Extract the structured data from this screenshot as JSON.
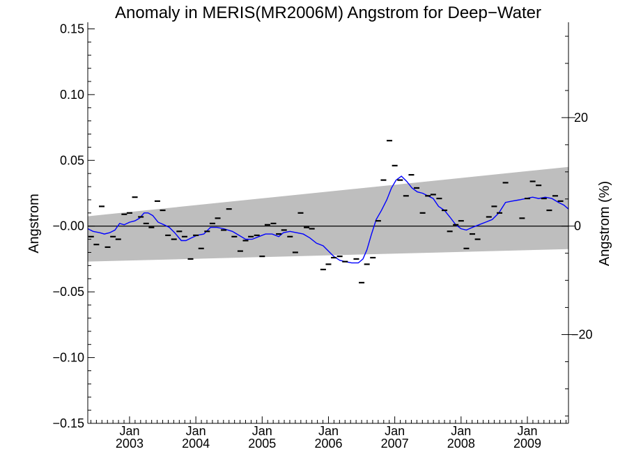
{
  "chart_data": {
    "type": "line",
    "title": "Anomaly in MERIS(MR2006M) Angstrom for Deep−Water",
    "ylabel": "Angstrom",
    "ylabel_right": "Angstrom (%)",
    "ylim": [
      -0.15,
      0.155
    ],
    "y_ticks": [
      {
        "value": 0.15,
        "label": "0.15"
      },
      {
        "value": 0.1,
        "label": "0.10"
      },
      {
        "value": 0.05,
        "label": "0.05"
      },
      {
        "value": 0.0,
        "label": "−0.00"
      },
      {
        "value": -0.05,
        "label": "−0.05"
      },
      {
        "value": -0.1,
        "label": "−0.10"
      },
      {
        "value": -0.15,
        "label": "−0.15"
      }
    ],
    "y_right_ticks": [
      {
        "value": 0.0825,
        "label": "20"
      },
      {
        "value": 0.0,
        "label": "0"
      },
      {
        "value": -0.0825,
        "label": "−20"
      }
    ],
    "xlim": [
      2002.37,
      2009.62
    ],
    "x_ticks": [
      {
        "value": 2003.0,
        "month": "Jan",
        "year": "2003"
      },
      {
        "value": 2004.0,
        "month": "Jan",
        "year": "2004"
      },
      {
        "value": 2005.0,
        "month": "Jan",
        "year": "2005"
      },
      {
        "value": 2006.0,
        "month": "Jan",
        "year": "2006"
      },
      {
        "value": 2007.0,
        "month": "Jan",
        "year": "2007"
      },
      {
        "value": 2008.0,
        "month": "Jan",
        "year": "2008"
      },
      {
        "value": 2009.0,
        "month": "Jan",
        "year": "2009"
      }
    ],
    "uncertainty_band": {
      "x": [
        2002.37,
        2009.62
      ],
      "upper": [
        0.0075,
        0.045
      ],
      "lower": [
        -0.027,
        -0.0175
      ],
      "color": "#bebebe"
    },
    "zero_line": 0.0,
    "series": [
      {
        "kind": "markers",
        "color": "#000000",
        "points": [
          [
            2002.42,
            -0.008
          ],
          [
            2002.5,
            -0.014
          ],
          [
            2002.58,
            0.015
          ],
          [
            2002.67,
            -0.016
          ],
          [
            2002.75,
            -0.008
          ],
          [
            2002.83,
            -0.01
          ],
          [
            2002.92,
            0.009
          ],
          [
            2003.0,
            0.01
          ],
          [
            2003.08,
            0.022
          ],
          [
            2003.17,
            0.007
          ],
          [
            2003.25,
            0.002
          ],
          [
            2003.33,
            -0.001
          ],
          [
            2003.42,
            0.019
          ],
          [
            2003.5,
            0.012
          ],
          [
            2003.58,
            -0.007
          ],
          [
            2003.67,
            -0.01
          ],
          [
            2003.75,
            -0.004
          ],
          [
            2003.83,
            -0.008
          ],
          [
            2003.92,
            -0.025
          ],
          [
            2004.0,
            -0.007
          ],
          [
            2004.08,
            -0.017
          ],
          [
            2004.17,
            -0.004
          ],
          [
            2004.25,
            0.002
          ],
          [
            2004.33,
            0.006
          ],
          [
            2004.42,
            -0.003
          ],
          [
            2004.5,
            0.013
          ],
          [
            2004.58,
            -0.008
          ],
          [
            2004.67,
            -0.019
          ],
          [
            2004.75,
            -0.011
          ],
          [
            2004.83,
            -0.008
          ],
          [
            2004.92,
            -0.007
          ],
          [
            2005.0,
            -0.023
          ],
          [
            2005.08,
            0.001
          ],
          [
            2005.17,
            0.002
          ],
          [
            2005.25,
            -0.006
          ],
          [
            2005.33,
            -0.003
          ],
          [
            2005.42,
            -0.008
          ],
          [
            2005.5,
            -0.02
          ],
          [
            2005.58,
            0.01
          ],
          [
            2005.67,
            -0.001
          ],
          [
            2005.75,
            -0.002
          ],
          [
            2005.92,
            -0.033
          ],
          [
            2006.0,
            -0.029
          ],
          [
            2006.08,
            -0.024
          ],
          [
            2006.17,
            -0.023
          ],
          [
            2006.25,
            -0.027
          ],
          [
            2006.42,
            -0.025
          ],
          [
            2006.5,
            -0.043
          ],
          [
            2006.58,
            -0.029
          ],
          [
            2006.67,
            -0.024
          ],
          [
            2006.75,
            0.004
          ],
          [
            2006.83,
            0.035
          ],
          [
            2006.92,
            0.065
          ],
          [
            2007.0,
            0.046
          ],
          [
            2007.08,
            0.035
          ],
          [
            2007.17,
            0.023
          ],
          [
            2007.25,
            0.039
          ],
          [
            2007.33,
            0.029
          ],
          [
            2007.42,
            0.01
          ],
          [
            2007.5,
            0.023
          ],
          [
            2007.58,
            0.024
          ],
          [
            2007.67,
            0.021
          ],
          [
            2007.75,
            0.012
          ],
          [
            2007.83,
            -0.004
          ],
          [
            2007.92,
            0.001
          ],
          [
            2008.0,
            0.004
          ],
          [
            2008.08,
            -0.017
          ],
          [
            2008.17,
            -0.006
          ],
          [
            2008.25,
            -0.01
          ],
          [
            2008.42,
            0.007
          ],
          [
            2008.5,
            0.015
          ],
          [
            2008.58,
            0.01
          ],
          [
            2008.67,
            0.033
          ],
          [
            2008.92,
            0.006
          ],
          [
            2009.0,
            0.021
          ],
          [
            2009.08,
            0.034
          ],
          [
            2009.17,
            0.031
          ],
          [
            2009.25,
            0.021
          ],
          [
            2009.33,
            0.012
          ],
          [
            2009.42,
            0.023
          ],
          [
            2009.5,
            0.019
          ]
        ]
      },
      {
        "kind": "line",
        "color": "#0000ff",
        "points": [
          [
            2002.37,
            -0.002
          ],
          [
            2002.45,
            -0.004
          ],
          [
            2002.55,
            -0.005
          ],
          [
            2002.62,
            -0.006
          ],
          [
            2002.7,
            -0.005
          ],
          [
            2002.78,
            -0.003
          ],
          [
            2002.85,
            0.002
          ],
          [
            2002.92,
            0.001
          ],
          [
            2003.0,
            0.003
          ],
          [
            2003.08,
            0.004
          ],
          [
            2003.15,
            0.006
          ],
          [
            2003.22,
            0.01
          ],
          [
            2003.28,
            0.01
          ],
          [
            2003.35,
            0.008
          ],
          [
            2003.43,
            0.003
          ],
          [
            2003.52,
            0.001
          ],
          [
            2003.6,
            -0.001
          ],
          [
            2003.68,
            -0.005
          ],
          [
            2003.78,
            -0.011
          ],
          [
            2003.85,
            -0.011
          ],
          [
            2003.93,
            -0.009
          ],
          [
            2004.02,
            -0.007
          ],
          [
            2004.12,
            -0.006
          ],
          [
            2004.22,
            -0.001
          ],
          [
            2004.32,
            -0.001
          ],
          [
            2004.42,
            -0.002
          ],
          [
            2004.55,
            -0.004
          ],
          [
            2004.65,
            -0.007
          ],
          [
            2004.75,
            -0.01
          ],
          [
            2004.85,
            -0.01
          ],
          [
            2004.95,
            -0.008
          ],
          [
            2005.05,
            -0.006
          ],
          [
            2005.15,
            -0.006
          ],
          [
            2005.25,
            -0.008
          ],
          [
            2005.32,
            -0.005
          ],
          [
            2005.42,
            -0.004
          ],
          [
            2005.52,
            -0.005
          ],
          [
            2005.62,
            -0.006
          ],
          [
            2005.72,
            -0.009
          ],
          [
            2005.82,
            -0.013
          ],
          [
            2005.92,
            -0.015
          ],
          [
            2006.0,
            -0.019
          ],
          [
            2006.08,
            -0.023
          ],
          [
            2006.17,
            -0.026
          ],
          [
            2006.25,
            -0.027
          ],
          [
            2006.35,
            -0.028
          ],
          [
            2006.45,
            -0.028
          ],
          [
            2006.52,
            -0.025
          ],
          [
            2006.58,
            -0.018
          ],
          [
            2006.65,
            -0.006
          ],
          [
            2006.72,
            0.005
          ],
          [
            2006.8,
            0.012
          ],
          [
            2006.88,
            0.02
          ],
          [
            2006.95,
            0.029
          ],
          [
            2007.02,
            0.035
          ],
          [
            2007.1,
            0.038
          ],
          [
            2007.18,
            0.034
          ],
          [
            2007.26,
            0.029
          ],
          [
            2007.34,
            0.026
          ],
          [
            2007.42,
            0.025
          ],
          [
            2007.5,
            0.023
          ],
          [
            2007.58,
            0.021
          ],
          [
            2007.66,
            0.015
          ],
          [
            2007.75,
            0.012
          ],
          [
            2007.83,
            0.007
          ],
          [
            2007.92,
            0.001
          ],
          [
            2008.0,
            -0.002
          ],
          [
            2008.08,
            -0.003
          ],
          [
            2008.17,
            -0.001
          ],
          [
            2008.27,
            0.001
          ],
          [
            2008.37,
            0.003
          ],
          [
            2008.47,
            0.005
          ],
          [
            2008.57,
            0.01
          ],
          [
            2008.67,
            0.018
          ],
          [
            2008.77,
            0.019
          ],
          [
            2008.88,
            0.02
          ],
          [
            2008.98,
            0.021
          ],
          [
            2009.08,
            0.022
          ],
          [
            2009.17,
            0.021
          ],
          [
            2009.27,
            0.022
          ],
          [
            2009.37,
            0.021
          ],
          [
            2009.47,
            0.018
          ],
          [
            2009.55,
            0.016
          ],
          [
            2009.62,
            0.013
          ]
        ]
      }
    ]
  }
}
